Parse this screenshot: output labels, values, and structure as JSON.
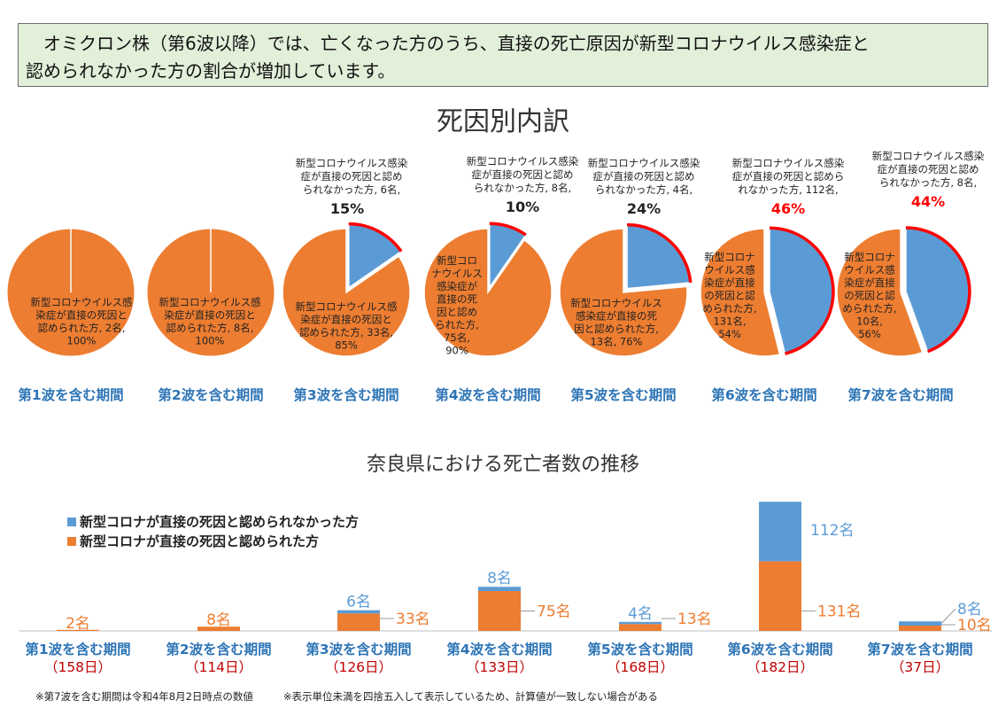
{
  "banner": {
    "line1": "　オミクロン株（第6波以降）では、亡くなった方のうち、直接の死亡原因が新型コロナウイルス感染症と",
    "line2": "認められなかった方の割合が増加しています。"
  },
  "colors": {
    "direct": "#ed7d31",
    "not_direct": "#5b9bd5",
    "outline_red": "#ff0000",
    "period_label_blue": "#2e75b6",
    "days_red": "#c00000"
  },
  "chart_data": [
    {
      "type": "pie",
      "title": "死因別内訳",
      "pies": [
        {
          "period": "第1波を含む期間",
          "slices": [
            {
              "label": "新型コロナウイルス感染症が直接の死因と認められた方",
              "count_text": "2名",
              "pct_text": "100%",
              "value": 2
            }
          ],
          "inner_label_lines": [
            "新型コロナウイルス感",
            "染症が直接の死因と",
            "認められた方, 2名,",
            "100%"
          ]
        },
        {
          "period": "第2波を含む期間",
          "slices": [
            {
              "label": "新型コロナウイルス感染症が直接の死因と認められた方",
              "count_text": "8名",
              "pct_text": "100%",
              "value": 8
            }
          ],
          "inner_label_lines": [
            "新型コロナウイルス感",
            "染症が直接の死因と",
            "認められた方, 8名,",
            "100%"
          ]
        },
        {
          "period": "第3波を含む期間",
          "slices": [
            {
              "label": "新型コロナウイルス感染症が直接の死因と認められた方",
              "value": 33,
              "pct": 85
            },
            {
              "label": "新型コロナウイルス感染症が直接の死因と認められなかった方",
              "value": 6,
              "pct": 15
            }
          ],
          "inner_label_lines": [
            "新型コロナウイルス感",
            "染症が直接の死因と",
            "認められた方, 33名,",
            "85%"
          ],
          "outer_label_lines": [
            "新型コロナウイルス感染",
            "症が直接の死因と認め",
            "られなかった方, 6名,"
          ],
          "outer_pct": "15%"
        },
        {
          "period": "第4波を含む期間",
          "slices": [
            {
              "label": "新型コロナウイルス感染症が直接の死因と認められた方",
              "value": 75,
              "pct": 90
            },
            {
              "label": "新型コロナウイルス感染症が直接の死因と認められなかった方",
              "value": 8,
              "pct": 10
            }
          ],
          "inner_label_lines": [
            "新型コロ",
            "ナウイルス",
            "感染症が",
            "直接の死",
            "因と認め",
            "られた方,",
            "75名,",
            "90%"
          ],
          "outer_label_lines": [
            "新型コロナウイルス感染",
            "症が直接の死因と認め",
            "られなかった方, 8名,"
          ],
          "outer_pct": "10%"
        },
        {
          "period": "第5波を含む期間",
          "slices": [
            {
              "label": "新型コロナウイルス感染症が直接の死因と認められた方",
              "value": 13,
              "pct": 76
            },
            {
              "label": "新型コロナウイルス感染症が直接の死因と認められなかった方",
              "value": 4,
              "pct": 24
            }
          ],
          "inner_label_lines": [
            "新型コロナウイルス",
            "感染症が直接の死",
            "因と認められた方,",
            "13名, 76%"
          ],
          "outer_label_lines": [
            "新型コロナウイルス感染",
            "症が直接の死因と認め",
            "られなかった方, 4名,"
          ],
          "outer_pct": "24%"
        },
        {
          "period": "第6波を含む期間",
          "slices": [
            {
              "label": "新型コロナウイルス感染症が直接の死因と認められた方",
              "value": 131,
              "pct": 54
            },
            {
              "label": "新型コロナウイルス感染症が直接の死因と認められなかった方",
              "value": 112,
              "pct": 46
            }
          ],
          "inner_label_lines": [
            "新型コロナ",
            "ウイルス感",
            "染症が直接",
            "の死因と認",
            "められた方,",
            "131名,",
            "54%"
          ],
          "outer_label_lines": [
            "新型コロナウイルス感染",
            "症が直接の死因と認めら",
            "れなかった方, 112名,"
          ],
          "outer_pct": "46%"
        },
        {
          "period": "第7波を含む期間",
          "slices": [
            {
              "label": "新型コロナウイルス感染症が直接の死因と認められた方",
              "value": 10,
              "pct": 56
            },
            {
              "label": "新型コロナウイルス感染症が直接の死因と認められなかった方",
              "value": 8,
              "pct": 44
            }
          ],
          "inner_label_lines": [
            "新型コロナ",
            "ウイルス感",
            "染症が直接",
            "の死因と認",
            "められた方,",
            "10名,",
            "56%"
          ],
          "outer_label_lines": [
            "新型コロナウイルス感染",
            "症が直接の死因と認め",
            "られなかった方, 8名,"
          ],
          "outer_pct": "44%"
        }
      ]
    },
    {
      "type": "bar",
      "stacked": true,
      "title": "奈良県における死亡者数の推移",
      "categories": [
        "第1波を含む期間",
        "第2波を含む期間",
        "第3波を含む期間",
        "第4波を含む期間",
        "第5波を含む期間",
        "第6波を含む期間",
        "第7波を含む期間"
      ],
      "category_sub_labels": [
        "（158日）",
        "（114日）",
        "（126日）",
        "（133日）",
        "（168日）",
        "（182日）",
        "（37日）"
      ],
      "series": [
        {
          "name": "新型コロナが直接の死因と認められた方",
          "values": [
            2,
            8,
            33,
            75,
            13,
            131,
            10
          ],
          "value_labels": [
            "2名",
            "8名",
            "33名",
            "75名",
            "13名",
            "131名",
            "10名"
          ]
        },
        {
          "name": "新型コロナが直接の死因と認められなかった方",
          "values": [
            0,
            0,
            6,
            8,
            4,
            112,
            8
          ],
          "value_labels": [
            "",
            "",
            "6名",
            "8名",
            "4名",
            "112名",
            "8名"
          ]
        }
      ],
      "legend": [
        "新型コロナが直接の死因と認められなかった方",
        "新型コロナが直接の死因と認められた方"
      ],
      "legend_position": "top-left"
    }
  ],
  "footnotes": [
    "※第7波を含む期間は令和4年8月2日時点の数値",
    "※表示単位未満を四捨五入して表示しているため、計算値が一致しない場合がある"
  ]
}
